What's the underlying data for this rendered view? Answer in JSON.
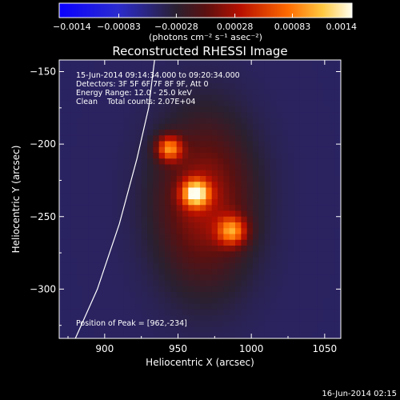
{
  "chart_data": {
    "type": "heatmap",
    "title": "Reconstructed RHESSI Image",
    "xlabel": "Heliocentric X (arcsec)",
    "ylabel": "Heliocentric Y (arcsec)",
    "xlim": [
      869,
      1061
    ],
    "ylim": [
      -334,
      -142
    ],
    "x_ticks": [
      900,
      950,
      1000,
      1050
    ],
    "y_ticks": [
      -300,
      -250,
      -200,
      -150
    ],
    "x_tick_labels": [
      "900",
      "950",
      "1000",
      "1050"
    ],
    "y_tick_labels": [
      "−300",
      "−250",
      "−200",
      "−150"
    ],
    "colorbar": {
      "min": -0.0014,
      "max": 0.0014,
      "ticks": [
        -0.0014,
        -0.00083,
        -0.00028,
        0.00028,
        0.00083,
        0.0014
      ],
      "tick_labels": [
        "−0.0014",
        "−0.00083",
        "−0.00028",
        "0.00028",
        "0.00083",
        "0.0014"
      ],
      "unit_label": "(photons cm⁻² s⁻¹ asec⁻²)"
    },
    "annotations": [
      "15-Jun-2014 09:14:34.000 to 09:20:34.000",
      "Detectors: 3F 5F 6F 7F 8F 9F, Att 0",
      "Energy Range: 12.0 - 25.0 keV",
      "Clean    Total counts: 2.07E+04"
    ],
    "peak_label": "Position of Peak = [962,-234]",
    "peak": [
      962,
      -234
    ],
    "sources": [
      {
        "x": 962,
        "y": -234,
        "peak": 0.0014,
        "sigma": 6.5
      },
      {
        "x": 944,
        "y": -203,
        "peak": 0.00115,
        "sigma": 6.0
      },
      {
        "x": 987,
        "y": -260,
        "peak": 0.00105,
        "sigma": 7.0
      }
    ],
    "diffuse_emission": {
      "center": [
        968,
        -240
      ],
      "peak": 0.0007,
      "sigma_x": 23,
      "sigma_y": 40
    },
    "background_level": -0.00045,
    "limb_curve": [
      [
        880,
        -334
      ],
      [
        895,
        -300
      ],
      [
        910,
        -255
      ],
      [
        922,
        -210
      ],
      [
        930,
        -175
      ],
      [
        934,
        -142
      ]
    ],
    "footer_date": "16-Jun-2014 02:15",
    "grid": false,
    "legend": "none"
  }
}
